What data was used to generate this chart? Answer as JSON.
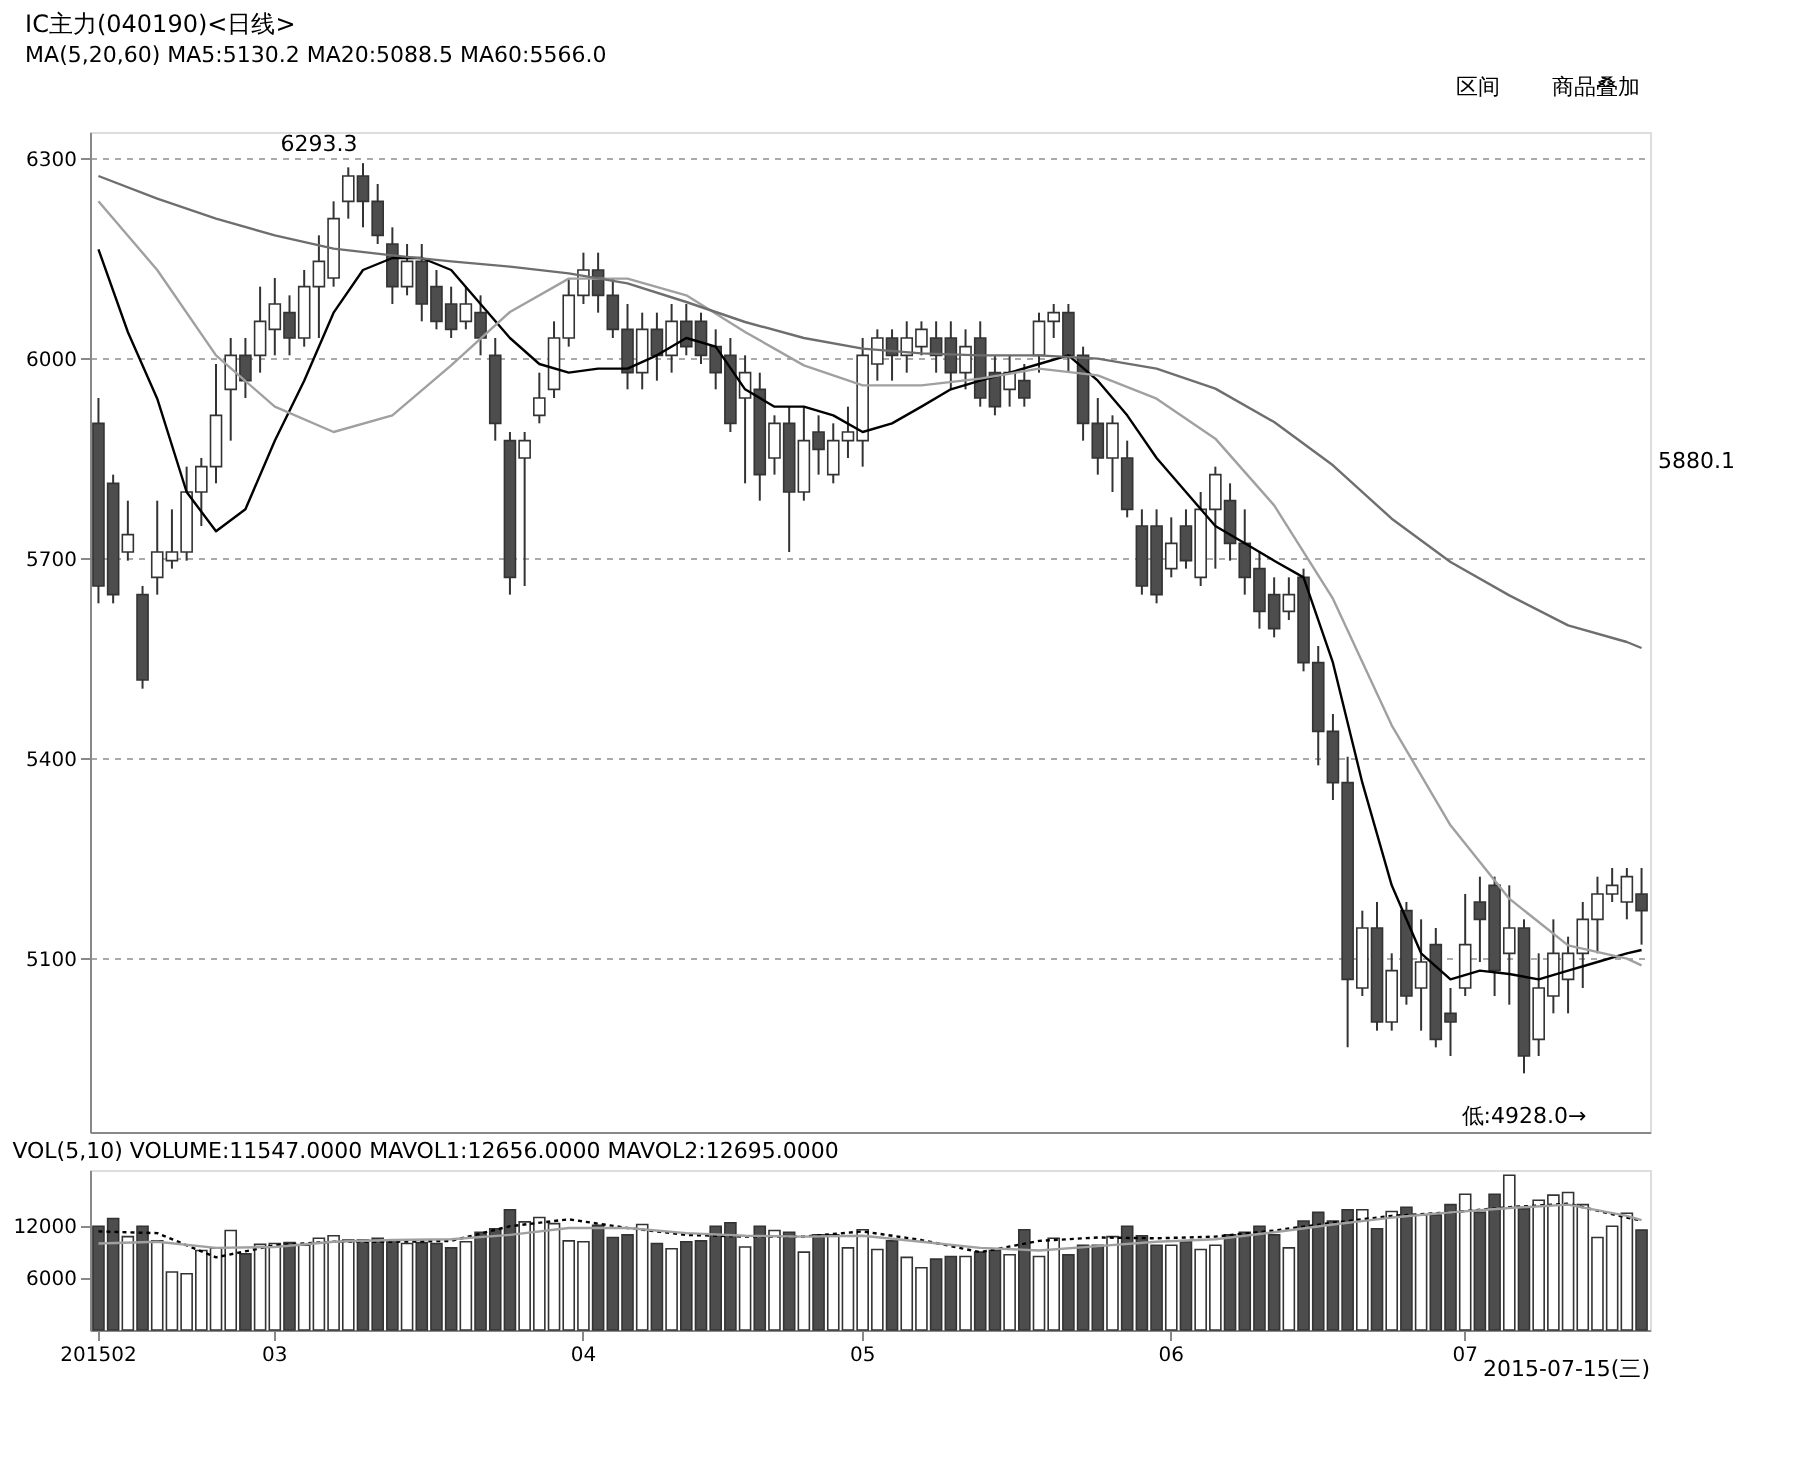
{
  "chart_data": [
    {
      "type": "candlestick",
      "title": "IC主力(040190)<日线>",
      "subtitle": "MA(5,20,60) MA5:5130.2 MA20:5088.5 MA60:5566.0",
      "categories": [
        "201502",
        null,
        null,
        null,
        null,
        null,
        null,
        null,
        null,
        null,
        null,
        null,
        "03",
        null,
        null,
        null,
        null,
        null,
        null,
        null,
        null,
        null,
        null,
        null,
        null,
        null,
        null,
        null,
        null,
        null,
        null,
        null,
        null,
        "04",
        null,
        null,
        null,
        null,
        null,
        null,
        null,
        null,
        null,
        null,
        null,
        null,
        null,
        null,
        null,
        null,
        null,
        null,
        "05",
        null,
        null,
        null,
        null,
        null,
        null,
        null,
        null,
        null,
        null,
        null,
        null,
        null,
        null,
        null,
        null,
        null,
        null,
        null,
        null,
        "06",
        null,
        null,
        null,
        null,
        null,
        null,
        null,
        null,
        null,
        null,
        null,
        null,
        null,
        null,
        null,
        null,
        null,
        null,
        null,
        "07",
        null,
        null,
        null,
        null,
        null,
        null,
        null,
        null,
        null,
        null,
        null,
        null
      ],
      "ohlc": [
        [
          5903,
          5941,
          5633,
          5659
        ],
        [
          5813,
          5826,
          5633,
          5646
        ],
        [
          5710,
          5787,
          5697,
          5736
        ],
        [
          5646,
          5659,
          5505,
          5518
        ],
        [
          5672,
          5787,
          5646,
          5710
        ],
        [
          5697,
          5774,
          5685,
          5710
        ],
        [
          5710,
          5838,
          5697,
          5800
        ],
        [
          5800,
          5851,
          5749,
          5838
        ],
        [
          5838,
          5992,
          5813,
          5915
        ],
        [
          5954,
          6031,
          5877,
          6005
        ],
        [
          6005,
          6031,
          5941,
          5967
        ],
        [
          6005,
          6108,
          5979,
          6056
        ],
        [
          6044,
          6121,
          6005,
          6082
        ],
        [
          6069,
          6095,
          6005,
          6031
        ],
        [
          6031,
          6133,
          6018,
          6108
        ],
        [
          6108,
          6185,
          6031,
          6146
        ],
        [
          6121,
          6236,
          6108,
          6210
        ],
        [
          6236,
          6287,
          6210,
          6274
        ],
        [
          6274,
          6293.3,
          6197,
          6236
        ],
        [
          6236,
          6262,
          6172,
          6185
        ],
        [
          6172,
          6197,
          6082,
          6108
        ],
        [
          6108,
          6172,
          6095,
          6146
        ],
        [
          6146,
          6172,
          6056,
          6082
        ],
        [
          6108,
          6133,
          6044,
          6056
        ],
        [
          6082,
          6108,
          6031,
          6044
        ],
        [
          6056,
          6108,
          6044,
          6082
        ],
        [
          6069,
          6095,
          6005,
          6031
        ],
        [
          6005,
          6031,
          5877,
          5903
        ],
        [
          5877,
          5890,
          5646,
          5672
        ],
        [
          5851,
          5890,
          5659,
          5877
        ],
        [
          5915,
          5979,
          5903,
          5941
        ],
        [
          5954,
          6056,
          5941,
          6031
        ],
        [
          6031,
          6121,
          6018,
          6095
        ],
        [
          6095,
          6159,
          6082,
          6133
        ],
        [
          6133,
          6159,
          6069,
          6095
        ],
        [
          6095,
          6121,
          6031,
          6044
        ],
        [
          6044,
          6082,
          5954,
          5979
        ],
        [
          5979,
          6069,
          5954,
          6044
        ],
        [
          6044,
          6069,
          5967,
          6005
        ],
        [
          6005,
          6082,
          5979,
          6056
        ],
        [
          6056,
          6082,
          6005,
          6018
        ],
        [
          6056,
          6069,
          5992,
          6005
        ],
        [
          6018,
          6044,
          5954,
          5979
        ],
        [
          6005,
          6031,
          5890,
          5903
        ],
        [
          5941,
          6005,
          5813,
          5979
        ],
        [
          5954,
          5979,
          5787,
          5826
        ],
        [
          5851,
          5915,
          5826,
          5903
        ],
        [
          5903,
          5928,
          5710,
          5800
        ],
        [
          5800,
          5928,
          5787,
          5877
        ],
        [
          5890,
          5915,
          5826,
          5864
        ],
        [
          5826,
          5903,
          5813,
          5877
        ],
        [
          5877,
          5928,
          5851,
          5890
        ],
        [
          5877,
          6031,
          5838,
          6005
        ],
        [
          5992,
          6044,
          5967,
          6031
        ],
        [
          6031,
          6044,
          5967,
          6005
        ],
        [
          6005,
          6056,
          5979,
          6031
        ],
        [
          6018,
          6056,
          6005,
          6044
        ],
        [
          6031,
          6056,
          5979,
          6005
        ],
        [
          6031,
          6056,
          5954,
          5979
        ],
        [
          5979,
          6044,
          5954,
          6018
        ],
        [
          6031,
          6056,
          5928,
          5941
        ],
        [
          5979,
          6005,
          5915,
          5928
        ],
        [
          5954,
          6005,
          5928,
          5979
        ],
        [
          5967,
          5992,
          5928,
          5941
        ],
        [
          6005,
          6069,
          5979,
          6056
        ],
        [
          6056,
          6082,
          6031,
          6069
        ],
        [
          6069,
          6082,
          5979,
          6005
        ],
        [
          6005,
          6018,
          5877,
          5903
        ],
        [
          5903,
          5941,
          5826,
          5851
        ],
        [
          5851,
          5915,
          5800,
          5903
        ],
        [
          5851,
          5877,
          5762,
          5774
        ],
        [
          5749,
          5774,
          5646,
          5659
        ],
        [
          5749,
          5774,
          5633,
          5646
        ],
        [
          5685,
          5762,
          5672,
          5723
        ],
        [
          5749,
          5774,
          5685,
          5697
        ],
        [
          5672,
          5800,
          5659,
          5774
        ],
        [
          5774,
          5838,
          5685,
          5826
        ],
        [
          5787,
          5813,
          5697,
          5723
        ],
        [
          5723,
          5774,
          5646,
          5672
        ],
        [
          5685,
          5710,
          5595,
          5621
        ],
        [
          5646,
          5672,
          5582,
          5595
        ],
        [
          5621,
          5672,
          5608,
          5646
        ],
        [
          5672,
          5685,
          5531,
          5544
        ],
        [
          5544,
          5569,
          5390,
          5441
        ],
        [
          5441,
          5467,
          5338,
          5364
        ],
        [
          5364,
          5403,
          4967,
          5069
        ],
        [
          5056,
          5172,
          5044,
          5146
        ],
        [
          5146,
          5185,
          4992,
          5005
        ],
        [
          5005,
          5108,
          4992,
          5082
        ],
        [
          5172,
          5185,
          5031,
          5044
        ],
        [
          5056,
          5159,
          4992,
          5095
        ],
        [
          5121,
          5146,
          4967,
          4979
        ],
        [
          5018,
          5056,
          4954,
          5005
        ],
        [
          5056,
          5197,
          5044,
          5121
        ],
        [
          5185,
          5223,
          5095,
          5159
        ],
        [
          5210,
          5223,
          5044,
          5082
        ],
        [
          5108,
          5210,
          5031,
          5146
        ],
        [
          5146,
          5159,
          4928,
          4954
        ],
        [
          4979,
          5108,
          4954,
          5056
        ],
        [
          5044,
          5159,
          5018,
          5108
        ],
        [
          5069,
          5133,
          5018,
          5108
        ],
        [
          5108,
          5185,
          5056,
          5159
        ],
        [
          5159,
          5223,
          5108,
          5197
        ],
        [
          5197,
          5236,
          5185,
          5210
        ],
        [
          5185,
          5236,
          5159,
          5223
        ],
        [
          5197,
          5236,
          5121,
          5172
        ]
      ],
      "colors": [
        "#4d4d4d",
        "#4d4d4d",
        "#ffffff",
        "#4d4d4d",
        "#ffffff",
        "#ffffff",
        "#ffffff",
        "#ffffff",
        "#ffffff",
        "#ffffff",
        "#4d4d4d",
        "#ffffff",
        "#ffffff",
        "#4d4d4d",
        "#ffffff",
        "#ffffff",
        "#ffffff",
        "#ffffff",
        "#4d4d4d",
        "#4d4d4d",
        "#4d4d4d",
        "#ffffff",
        "#4d4d4d",
        "#4d4d4d",
        "#4d4d4d",
        "#ffffff",
        "#4d4d4d",
        "#4d4d4d",
        "#4d4d4d",
        "#ffffff",
        "#ffffff",
        "#ffffff",
        "#ffffff",
        "#ffffff",
        "#4d4d4d",
        "#4d4d4d",
        "#4d4d4d",
        "#ffffff",
        "#4d4d4d",
        "#ffffff",
        "#4d4d4d",
        "#4d4d4d",
        "#4d4d4d",
        "#4d4d4d",
        "#ffffff",
        "#4d4d4d",
        "#ffffff",
        "#4d4d4d",
        "#ffffff",
        "#4d4d4d",
        "#ffffff",
        "#ffffff",
        "#ffffff",
        "#ffffff",
        "#4d4d4d",
        "#ffffff",
        "#ffffff",
        "#4d4d4d",
        "#4d4d4d",
        "#ffffff",
        "#4d4d4d",
        "#4d4d4d",
        "#ffffff",
        "#4d4d4d",
        "#ffffff",
        "#ffffff",
        "#4d4d4d",
        "#4d4d4d",
        "#4d4d4d",
        "#ffffff",
        "#4d4d4d",
        "#4d4d4d",
        "#4d4d4d",
        "#ffffff",
        "#4d4d4d",
        "#ffffff",
        "#ffffff",
        "#4d4d4d",
        "#4d4d4d",
        "#4d4d4d",
        "#4d4d4d",
        "#ffffff",
        "#4d4d4d",
        "#4d4d4d",
        "#4d4d4d",
        "#4d4d4d",
        "#ffffff",
        "#4d4d4d",
        "#ffffff",
        "#4d4d4d",
        "#ffffff",
        "#4d4d4d",
        "#4d4d4d",
        "#ffffff",
        "#4d4d4d",
        "#4d4d4d",
        "#ffffff",
        "#4d4d4d",
        "#ffffff",
        "#ffffff",
        "#ffffff",
        "#ffffff",
        "#ffffff",
        "#ffffff",
        "#ffffff",
        "#4d4d4d"
      ],
      "series": [
        {
          "type": "line",
          "color": "#000000",
          "values": [
            6164,
            null,
            6040,
            null,
            5940,
            null,
            5800,
            null,
            5741,
            null,
            5774,
            null,
            5877,
            null,
            5967,
            null,
            6069,
            null,
            6133,
            null,
            6151,
            null,
            6151,
            null,
            6133,
            null,
            6082,
            null,
            6031,
            null,
            5992,
            null,
            5979,
            null,
            5985,
            null,
            5985,
            null,
            6005,
            null,
            6031,
            null,
            6018,
            null,
            5954,
            null,
            5928,
            null,
            5928,
            null,
            5915,
            null,
            5890,
            null,
            5903,
            null,
            5928,
            null,
            5954,
            null,
            5967,
            null,
            5979,
            null,
            5992,
            null,
            6005,
            null,
            5967,
            null,
            5915,
            null,
            5851,
            null,
            5800,
            null,
            5749,
            null,
            5723,
            null,
            5697,
            null,
            5672,
            null,
            5544,
            null,
            5364,
            null,
            5210,
            null,
            5108,
            null,
            5069,
            null,
            5082,
            null,
            5077,
            null,
            5069,
            null,
            5082,
            null,
            5095,
            null,
            5108,
            5113
          ]
        },
        {
          "type": "line",
          "color": "#a0a0a0",
          "values": [
            6236,
            null,
            null,
            null,
            6133,
            null,
            null,
            null,
            6005,
            null,
            null,
            null,
            5928,
            null,
            null,
            null,
            5890,
            null,
            null,
            null,
            5915,
            null,
            null,
            null,
            5990,
            null,
            null,
            null,
            6070,
            null,
            null,
            null,
            6120,
            null,
            null,
            null,
            6120,
            null,
            null,
            null,
            6095,
            null,
            null,
            null,
            6040,
            null,
            null,
            null,
            5990,
            null,
            null,
            null,
            5960,
            null,
            null,
            null,
            5960,
            null,
            null,
            null,
            5970,
            null,
            null,
            null,
            5985,
            null,
            null,
            null,
            5975,
            null,
            null,
            null,
            5940,
            null,
            null,
            null,
            5880,
            null,
            null,
            null,
            5780,
            null,
            null,
            null,
            5640,
            null,
            null,
            null,
            5450,
            null,
            null,
            null,
            5300,
            null,
            null,
            null,
            5190,
            null,
            null,
            null,
            5120,
            null,
            null,
            null,
            5100,
            5090
          ]
        },
        {
          "type": "line",
          "color": "#6e6e6e",
          "values": [
            6274,
            null,
            null,
            null,
            6240,
            null,
            null,
            null,
            6210,
            null,
            null,
            null,
            6185,
            null,
            null,
            null,
            6165,
            null,
            null,
            null,
            6155,
            null,
            null,
            null,
            6146,
            null,
            null,
            null,
            6138,
            null,
            null,
            null,
            6128,
            null,
            null,
            null,
            6113,
            null,
            null,
            null,
            6085,
            null,
            null,
            null,
            6055,
            null,
            null,
            null,
            6031,
            null,
            null,
            null,
            6015,
            null,
            null,
            null,
            6008,
            null,
            null,
            null,
            6005,
            null,
            null,
            null,
            6005,
            null,
            null,
            null,
            6000,
            null,
            null,
            null,
            5985,
            null,
            null,
            null,
            5955,
            null,
            null,
            null,
            5905,
            null,
            null,
            null,
            5840,
            null,
            null,
            null,
            5760,
            null,
            null,
            null,
            5695,
            null,
            null,
            null,
            5645,
            null,
            null,
            null,
            5600,
            null,
            null,
            null,
            5575,
            5566
          ]
        }
      ],
      "ylim": [
        4840,
        6340
      ],
      "yticks": [
        5100,
        5400,
        5700,
        6000,
        6300
      ],
      "grid": "y",
      "tick_labels": "y",
      "annotations": [
        "6293.3",
        "低:4928.0→",
        "5880.1",
        "商品叠加",
        "区间"
      ]
    },
    {
      "type": "bar",
      "title": "VOL(5,10) VOLUME:11547.0000 MAVOL1:12656.0000 MAVOL2:12695.0000",
      "categories": [
        "201502",
        null,
        null,
        null,
        null,
        null,
        null,
        null,
        null,
        null,
        null,
        null,
        "03",
        null,
        null,
        null,
        null,
        null,
        null,
        null,
        null,
        null,
        null,
        null,
        null,
        null,
        null,
        null,
        null,
        null,
        null,
        null,
        null,
        "04",
        null,
        null,
        null,
        null,
        null,
        null,
        null,
        null,
        null,
        null,
        null,
        null,
        null,
        null,
        null,
        null,
        null,
        null,
        "05",
        null,
        null,
        null,
        null,
        null,
        null,
        null,
        null,
        null,
        null,
        null,
        null,
        null,
        null,
        null,
        null,
        null,
        null,
        null,
        null,
        "06",
        null,
        null,
        null,
        null,
        null,
        null,
        null,
        null,
        null,
        null,
        null,
        null,
        null,
        null,
        null,
        null,
        null,
        null,
        null,
        "07",
        null,
        null,
        null,
        null,
        null,
        null,
        null,
        null,
        null,
        null,
        null,
        null
      ],
      "series": [
        {
          "type": "bar",
          "values": [
            12000,
            12900,
            10800,
            12000,
            10300,
            6700,
            6500,
            9200,
            9500,
            11500,
            8800,
            9900,
            10000,
            10100,
            9800,
            10600,
            10900,
            10400,
            10400,
            10600,
            10400,
            10000,
            10100,
            10000,
            9500,
            10200,
            11300,
            11700,
            13900,
            12500,
            13000,
            12300,
            10300,
            10200,
            12100,
            10700,
            11000,
            12200,
            10000,
            9400,
            10200,
            10300,
            12000,
            12400,
            9600,
            12000,
            11500,
            11300,
            9000,
            11000,
            11000,
            9500,
            11600,
            9300,
            10300,
            8400,
            7200,
            8200,
            8500,
            8500,
            9000,
            9200,
            8700,
            11600,
            8500,
            10600,
            8700,
            9800,
            9800,
            10800,
            12000,
            10900,
            9800,
            9800,
            10200,
            9300,
            9800,
            11000,
            11300,
            12000,
            11000,
            9500,
            12600,
            13600,
            12600,
            13900,
            13900,
            11700,
            13700,
            14200,
            13300,
            13300,
            14500,
            15700,
            13600,
            15700,
            17900,
            14000,
            15000,
            15600,
            15900,
            14500,
            10700,
            12000,
            13500,
            11547
          ],
          "colors": [
            "#4d4d4d",
            "#4d4d4d",
            "#ffffff",
            "#4d4d4d",
            "#ffffff",
            "#ffffff",
            "#ffffff",
            "#ffffff",
            "#ffffff",
            "#ffffff",
            "#4d4d4d",
            "#ffffff",
            "#ffffff",
            "#4d4d4d",
            "#ffffff",
            "#ffffff",
            "#ffffff",
            "#ffffff",
            "#4d4d4d",
            "#4d4d4d",
            "#4d4d4d",
            "#ffffff",
            "#4d4d4d",
            "#4d4d4d",
            "#4d4d4d",
            "#ffffff",
            "#4d4d4d",
            "#4d4d4d",
            "#4d4d4d",
            "#ffffff",
            "#ffffff",
            "#ffffff",
            "#ffffff",
            "#ffffff",
            "#4d4d4d",
            "#4d4d4d",
            "#4d4d4d",
            "#ffffff",
            "#4d4d4d",
            "#ffffff",
            "#4d4d4d",
            "#4d4d4d",
            "#4d4d4d",
            "#4d4d4d",
            "#ffffff",
            "#4d4d4d",
            "#ffffff",
            "#4d4d4d",
            "#ffffff",
            "#4d4d4d",
            "#ffffff",
            "#ffffff",
            "#ffffff",
            "#ffffff",
            "#4d4d4d",
            "#ffffff",
            "#ffffff",
            "#4d4d4d",
            "#4d4d4d",
            "#ffffff",
            "#4d4d4d",
            "#4d4d4d",
            "#ffffff",
            "#4d4d4d",
            "#ffffff",
            "#ffffff",
            "#4d4d4d",
            "#4d4d4d",
            "#4d4d4d",
            "#ffffff",
            "#4d4d4d",
            "#4d4d4d",
            "#4d4d4d",
            "#ffffff",
            "#4d4d4d",
            "#ffffff",
            "#ffffff",
            "#4d4d4d",
            "#4d4d4d",
            "#4d4d4d",
            "#4d4d4d",
            "#ffffff",
            "#4d4d4d",
            "#4d4d4d",
            "#4d4d4d",
            "#4d4d4d",
            "#ffffff",
            "#4d4d4d",
            "#ffffff",
            "#4d4d4d",
            "#ffffff",
            "#4d4d4d",
            "#4d4d4d",
            "#ffffff",
            "#4d4d4d",
            "#4d4d4d",
            "#ffffff",
            "#4d4d4d",
            "#ffffff",
            "#ffffff",
            "#ffffff",
            "#ffffff",
            "#ffffff",
            "#ffffff",
            "#ffffff",
            "#4d4d4d"
          ]
        },
        {
          "type": "line",
          "color": "#000000",
          "line_style": "dotted",
          "values": [
            11400,
            null,
            null,
            null,
            11200,
            null,
            null,
            null,
            8400,
            null,
            null,
            null,
            9800,
            null,
            null,
            null,
            10200,
            null,
            null,
            null,
            10200,
            null,
            null,
            null,
            10300,
            null,
            null,
            null,
            12000,
            null,
            null,
            null,
            12800,
            null,
            null,
            null,
            11800,
            null,
            null,
            null,
            11000,
            null,
            null,
            null,
            10800,
            null,
            null,
            null,
            10800,
            null,
            null,
            null,
            11400,
            null,
            null,
            null,
            10400,
            null,
            null,
            null,
            9000,
            null,
            null,
            null,
            10300,
            null,
            null,
            null,
            10700,
            null,
            null,
            null,
            10600,
            null,
            null,
            null,
            10800,
            null,
            null,
            null,
            11500,
            null,
            null,
            null,
            12400,
            null,
            null,
            null,
            13200,
            null,
            null,
            null,
            13600,
            null,
            null,
            null,
            14200,
            null,
            null,
            null,
            14600,
            null,
            null,
            null,
            13000,
            12656
          ]
        },
        {
          "type": "line",
          "color": "#a0a0a0",
          "values": [
            10000,
            null,
            null,
            null,
            10200,
            null,
            null,
            null,
            9500,
            null,
            null,
            null,
            9600,
            null,
            null,
            null,
            10200,
            null,
            null,
            null,
            10400,
            null,
            null,
            null,
            10500,
            null,
            null,
            null,
            11000,
            null,
            null,
            null,
            11800,
            null,
            null,
            null,
            11800,
            null,
            null,
            null,
            11200,
            null,
            null,
            null,
            10900,
            null,
            null,
            null,
            10800,
            null,
            null,
            null,
            10900,
            null,
            null,
            null,
            10200,
            null,
            null,
            null,
            9500,
            null,
            null,
            null,
            9200,
            null,
            null,
            null,
            9700,
            null,
            null,
            null,
            10200,
            null,
            null,
            null,
            10500,
            null,
            null,
            null,
            11300,
            null,
            null,
            null,
            12200,
            null,
            null,
            null,
            13000,
            null,
            null,
            null,
            13600,
            null,
            null,
            null,
            14100,
            null,
            null,
            null,
            14500,
            null,
            null,
            null,
            13200,
            12695
          ]
        }
      ],
      "ylim": [
        0,
        18500
      ],
      "yticks": [
        6000,
        12000
      ],
      "annotations": [
        "2015-07-15(三)"
      ]
    }
  ]
}
